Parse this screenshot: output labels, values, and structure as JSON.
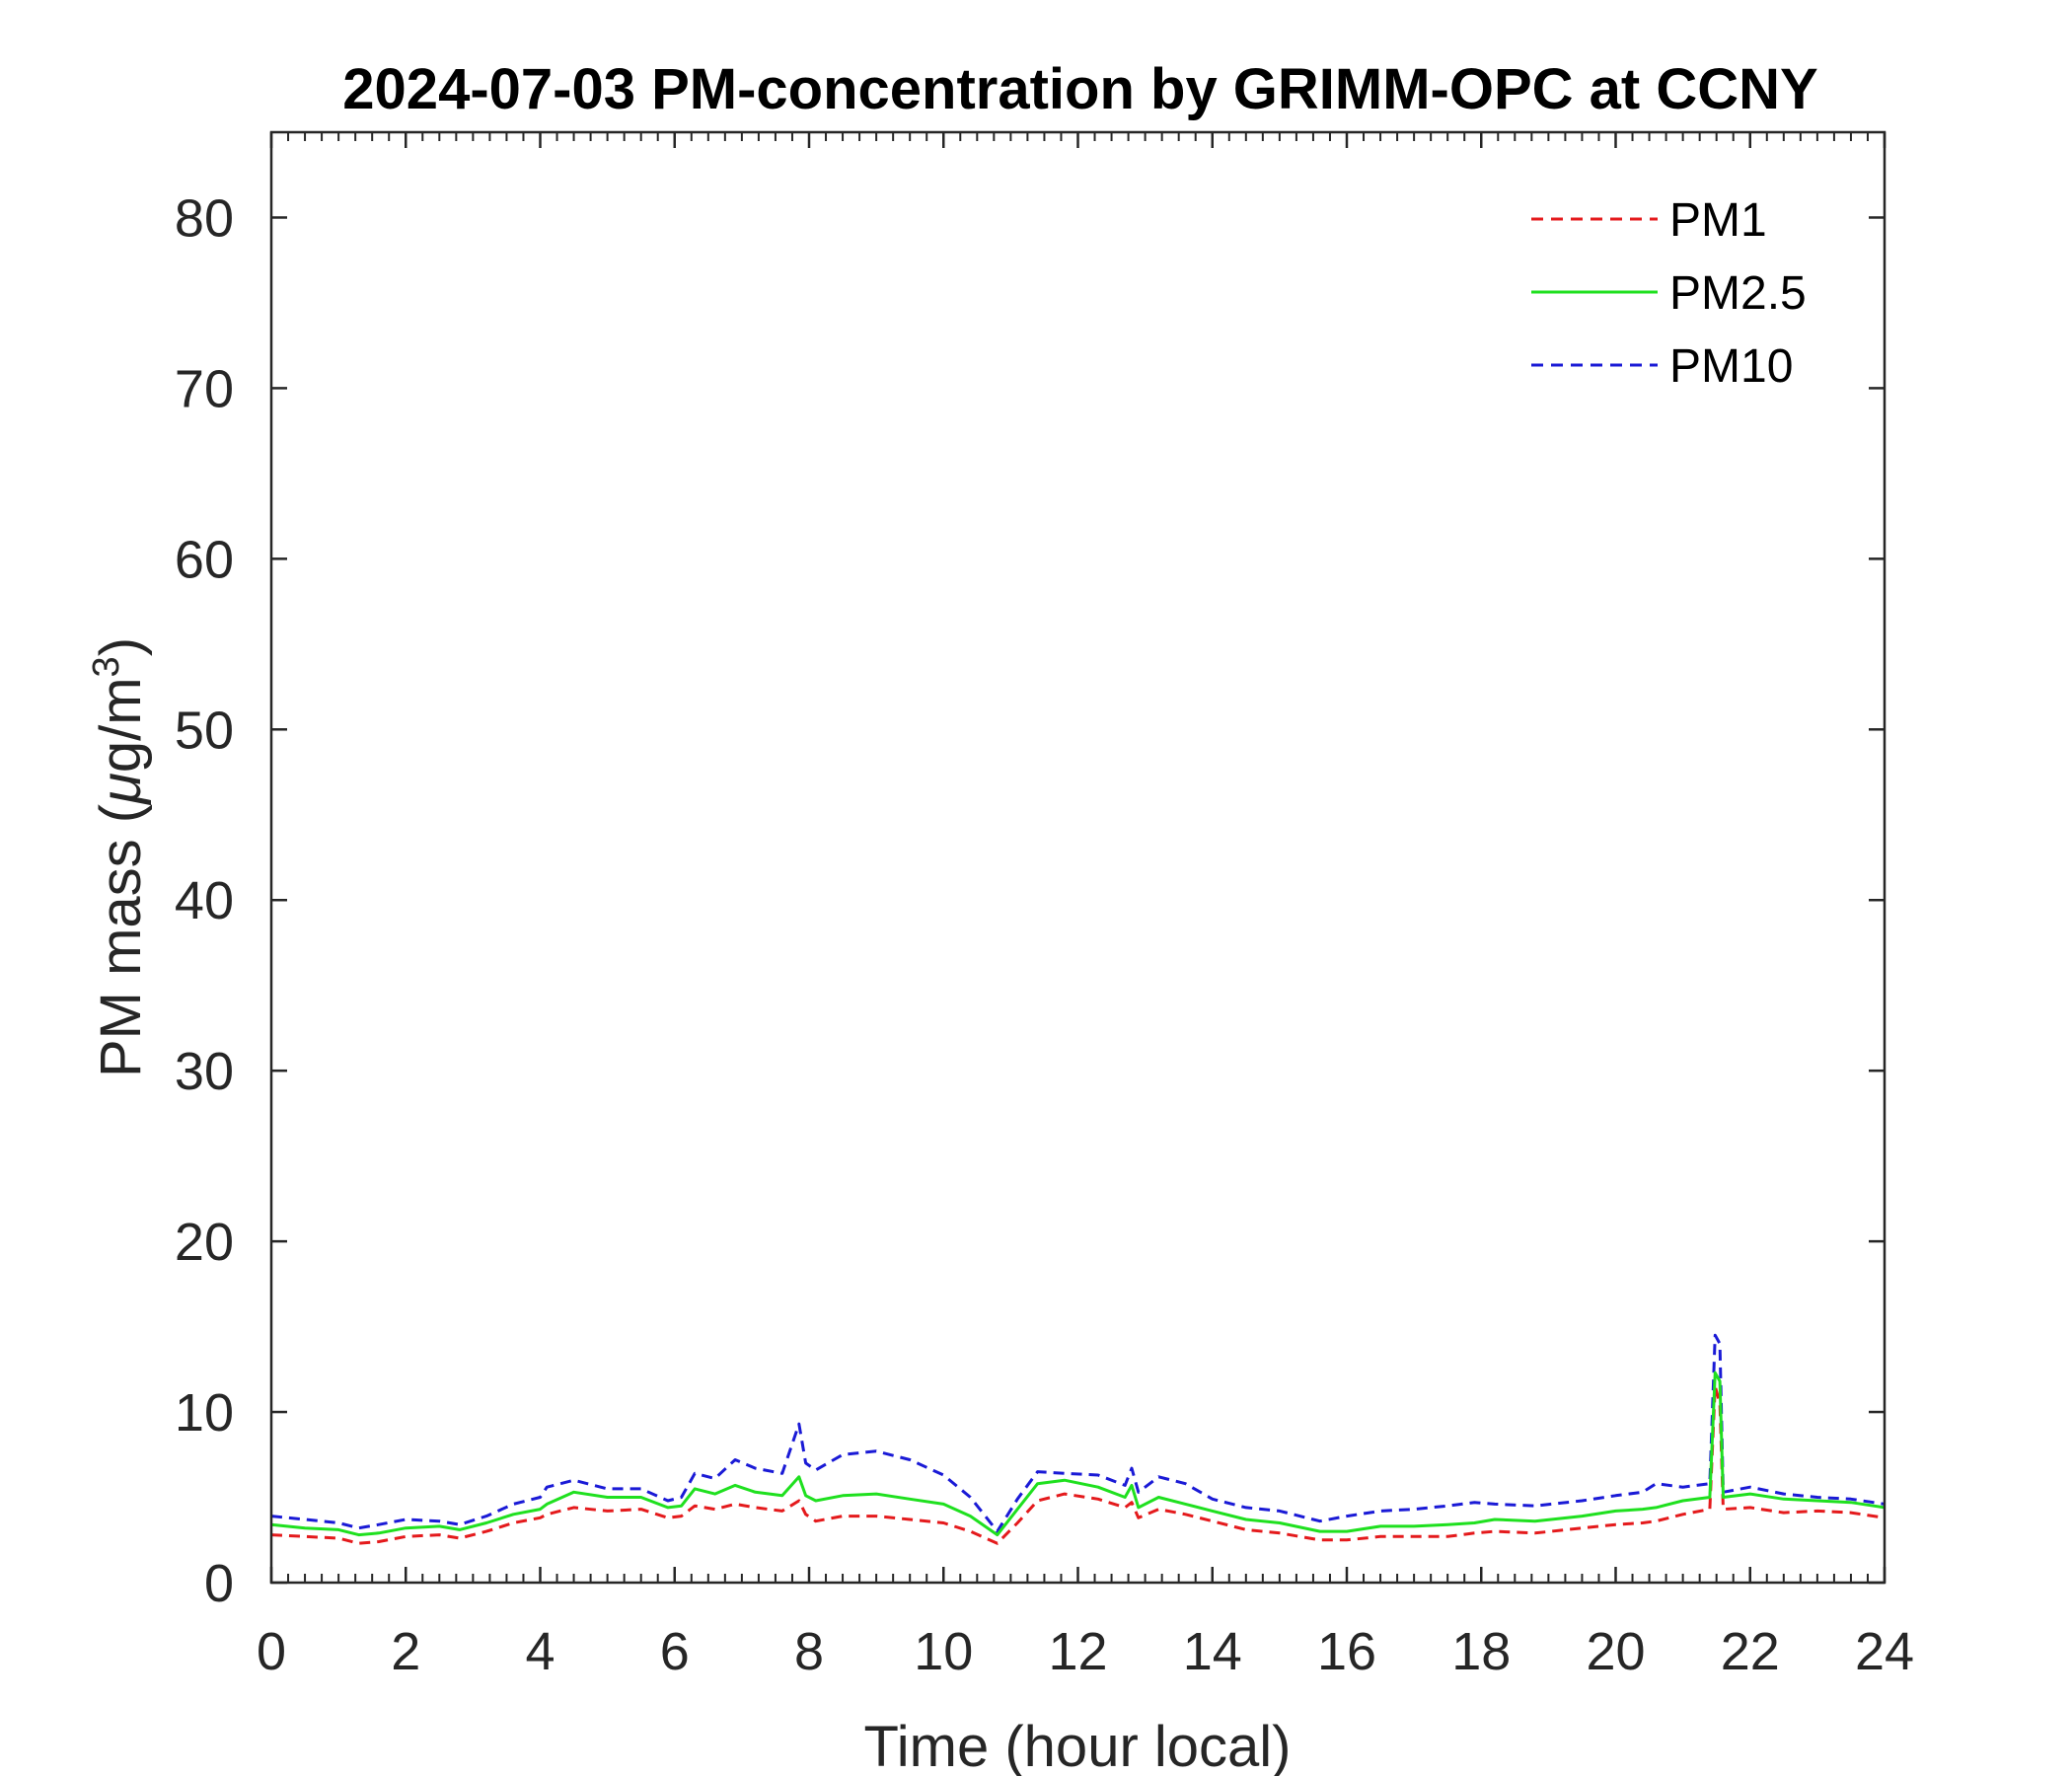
{
  "chart_data": {
    "type": "line",
    "title": "2024-07-03 PM-concentration by GRIMM-OPC at CCNY",
    "xlabel": "Time (hour local)",
    "ylabel_main": "PM mass (",
    "ylabel_mu": "μ",
    "ylabel_unit": "g/m",
    "ylabel_sup": "3",
    "ylabel_close": ")",
    "xlim": [
      0,
      24
    ],
    "ylim": [
      0,
      85
    ],
    "xticks": [
      "0",
      "2",
      "4",
      "6",
      "8",
      "10",
      "12",
      "14",
      "16",
      "18",
      "20",
      "22",
      "24"
    ],
    "yticks": [
      "0",
      "10",
      "20",
      "30",
      "40",
      "50",
      "60",
      "70",
      "80"
    ],
    "grid": false,
    "legend_position": "top-right",
    "x": [
      0,
      0.5,
      1,
      1.3,
      1.6,
      2,
      2.5,
      2.8,
      3.2,
      3.6,
      4,
      4.1,
      4.5,
      5,
      5.5,
      5.9,
      6.1,
      6.3,
      6.6,
      6.9,
      7.2,
      7.6,
      7.85,
      7.95,
      8.1,
      8.5,
      9,
      9.5,
      10,
      10.4,
      10.8,
      11.1,
      11.4,
      11.8,
      12.3,
      12.7,
      12.8,
      12.9,
      13.2,
      13.6,
      14,
      14.5,
      15,
      15.6,
      16,
      16.5,
      17,
      17.5,
      17.9,
      18.2,
      18.8,
      19.5,
      20,
      20.4,
      20.6,
      21,
      21.4,
      21.48,
      21.55,
      21.6,
      22,
      22.5,
      23,
      23.5,
      24
    ],
    "series": [
      {
        "name": "PM1",
        "color": "#e41a1c",
        "dash": "dashed",
        "values": [
          2.8,
          2.7,
          2.6,
          2.3,
          2.4,
          2.7,
          2.8,
          2.6,
          3.0,
          3.5,
          3.8,
          4.0,
          4.4,
          4.2,
          4.3,
          3.8,
          3.9,
          4.5,
          4.3,
          4.6,
          4.4,
          4.2,
          4.8,
          4.0,
          3.6,
          3.9,
          3.9,
          3.7,
          3.5,
          3.0,
          2.3,
          3.5,
          4.8,
          5.2,
          4.9,
          4.4,
          4.7,
          3.8,
          4.3,
          4.0,
          3.6,
          3.1,
          2.9,
          2.5,
          2.5,
          2.7,
          2.7,
          2.7,
          2.9,
          3.0,
          2.9,
          3.2,
          3.4,
          3.5,
          3.6,
          4.0,
          4.3,
          11.5,
          10.5,
          4.3,
          4.4,
          4.1,
          4.2,
          4.1,
          3.8
        ]
      },
      {
        "name": "PM2.5",
        "color": "#1fe01f",
        "dash": "solid",
        "values": [
          3.4,
          3.2,
          3.1,
          2.8,
          2.9,
          3.2,
          3.3,
          3.1,
          3.5,
          4.0,
          4.3,
          4.6,
          5.3,
          5.0,
          5.0,
          4.4,
          4.5,
          5.5,
          5.2,
          5.7,
          5.3,
          5.1,
          6.2,
          5.1,
          4.8,
          5.1,
          5.2,
          4.9,
          4.6,
          3.9,
          2.8,
          4.3,
          5.8,
          6.0,
          5.6,
          5.0,
          5.7,
          4.4,
          5.0,
          4.6,
          4.2,
          3.7,
          3.5,
          3.0,
          3.0,
          3.3,
          3.3,
          3.4,
          3.5,
          3.7,
          3.6,
          3.9,
          4.2,
          4.3,
          4.4,
          4.8,
          5.0,
          12.3,
          11.8,
          5.0,
          5.2,
          4.9,
          4.8,
          4.7,
          4.4
        ]
      },
      {
        "name": "PM10",
        "color": "#1a1ad6",
        "dash": "dashed",
        "values": [
          3.9,
          3.7,
          3.5,
          3.2,
          3.4,
          3.7,
          3.6,
          3.4,
          3.9,
          4.6,
          5.0,
          5.6,
          6.0,
          5.5,
          5.5,
          4.8,
          5.0,
          6.4,
          6.1,
          7.2,
          6.7,
          6.4,
          9.3,
          7.0,
          6.6,
          7.5,
          7.7,
          7.2,
          6.3,
          5.0,
          3.0,
          4.9,
          6.5,
          6.4,
          6.3,
          5.7,
          6.7,
          5.3,
          6.2,
          5.8,
          4.9,
          4.4,
          4.2,
          3.6,
          3.9,
          4.2,
          4.3,
          4.5,
          4.7,
          4.6,
          4.5,
          4.8,
          5.1,
          5.3,
          5.8,
          5.6,
          5.8,
          14.5,
          14.0,
          5.3,
          5.6,
          5.2,
          5.0,
          4.9,
          4.6
        ]
      }
    ]
  }
}
